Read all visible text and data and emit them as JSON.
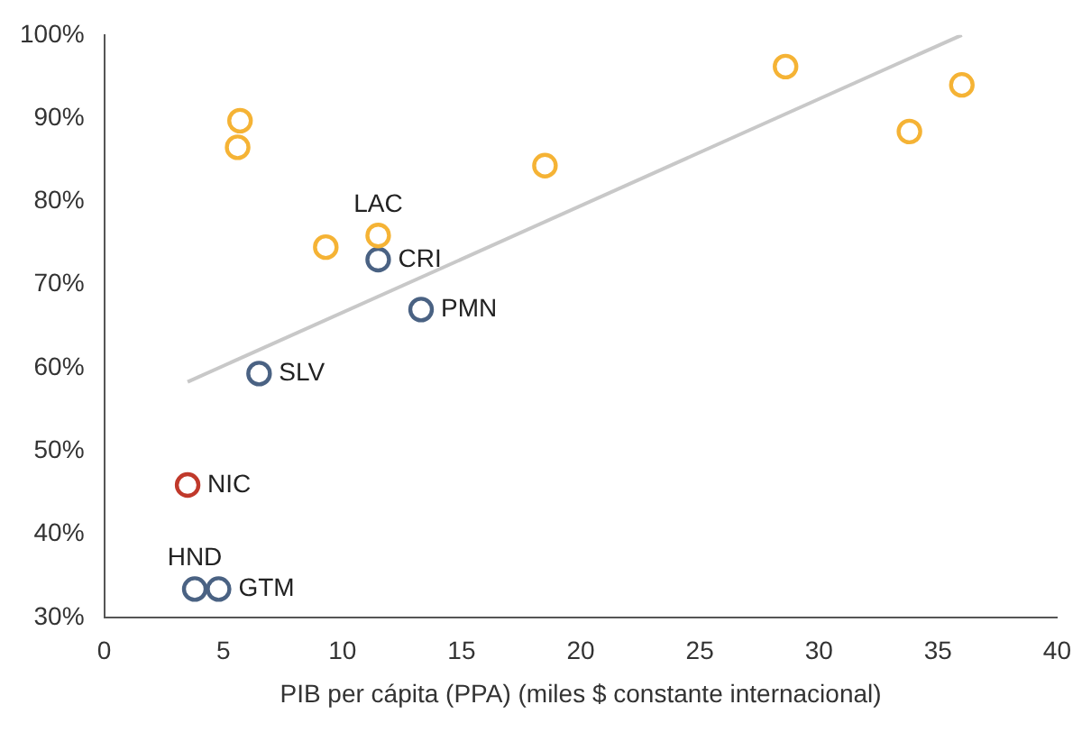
{
  "chart_data": {
    "type": "scatter",
    "xlabel": "PIB per cápita (PPA) (miles $ constante internacional)",
    "xlim": [
      0,
      40
    ],
    "xticks": [
      0,
      5,
      10,
      15,
      20,
      25,
      30,
      35,
      40
    ],
    "ylim": [
      30,
      100
    ],
    "yticks": [
      {
        "value": 30,
        "label": "30%"
      },
      {
        "value": 40,
        "label": "40%"
      },
      {
        "value": 50,
        "label": "50%"
      },
      {
        "value": 60,
        "label": "60%"
      },
      {
        "value": 70,
        "label": "70%"
      },
      {
        "value": 80,
        "label": "80%"
      },
      {
        "value": 90,
        "label": "90%"
      },
      {
        "value": 100,
        "label": "100%"
      }
    ],
    "grid": false,
    "legend": false,
    "marker": "circle",
    "series": [
      {
        "type": "line",
        "color": "#c8c8c8",
        "x": [
          3.5,
          36
        ],
        "values": [
          58.3,
          100
        ],
        "marker": "none"
      },
      {
        "color": "#f5b335",
        "x": [
          5.7,
          5.6,
          9.3,
          11.5,
          18.5,
          28.6,
          33.8,
          36
        ],
        "values": [
          89.7,
          86.5,
          74.5,
          75.9,
          84.3,
          96.2,
          88.4,
          94
        ]
      },
      {
        "color": "#4a6283",
        "x": [
          11.5,
          13.3,
          6.5,
          3.8,
          4.8
        ],
        "values": [
          73,
          67,
          59.3,
          33.4,
          33.4
        ]
      },
      {
        "color": "#c0392b",
        "x": [
          3.5
        ],
        "values": [
          45.9
        ]
      }
    ],
    "annotations": [
      {
        "text": "LAC",
        "x": 11.5,
        "y": 75.9
      },
      {
        "text": "CRI",
        "x": 11.5,
        "y": 73
      },
      {
        "text": "PMN",
        "x": 13.3,
        "y": 67
      },
      {
        "text": "SLV",
        "x": 6.5,
        "y": 59.3
      },
      {
        "text": "NIC",
        "x": 3.5,
        "y": 45.9
      },
      {
        "text": "HND",
        "x": 3.8,
        "y": 33.4
      },
      {
        "text": "GTM",
        "x": 4.8,
        "y": 33.4
      }
    ]
  }
}
